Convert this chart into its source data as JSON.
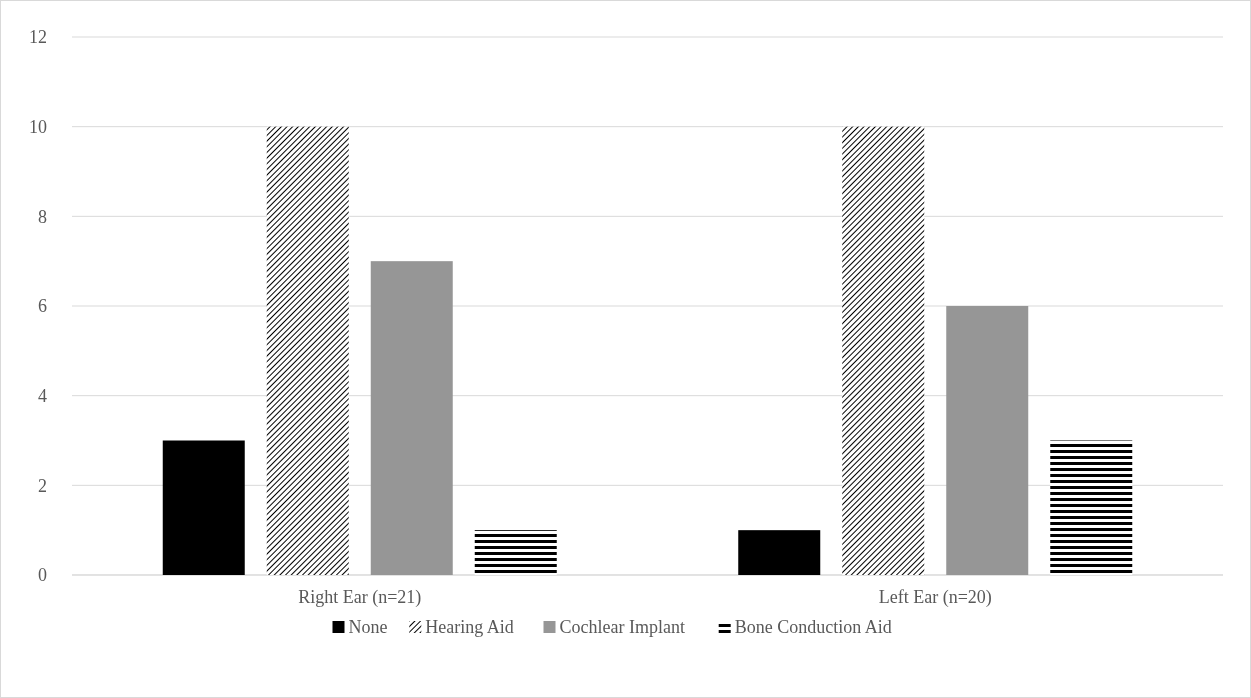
{
  "chart_data": {
    "type": "bar",
    "categories": [
      "Right Ear (n=21)",
      "Left Ear (n=20)"
    ],
    "series": [
      {
        "name": "None",
        "color": "#000000",
        "values": [
          3,
          1
        ]
      },
      {
        "name": "Hearing Aid",
        "color": "#000000",
        "values": [
          10,
          10
        ]
      },
      {
        "name": "Cochlear Implant",
        "color": "#969696",
        "values": [
          7,
          6
        ]
      },
      {
        "name": "Bone Conduction Aid",
        "color": "#000000",
        "values": [
          1,
          3
        ]
      }
    ],
    "ylim": [
      0,
      12
    ],
    "yticks": [
      0,
      2,
      4,
      6,
      8,
      10,
      12
    ],
    "grid": "y",
    "legend": "bottom"
  }
}
